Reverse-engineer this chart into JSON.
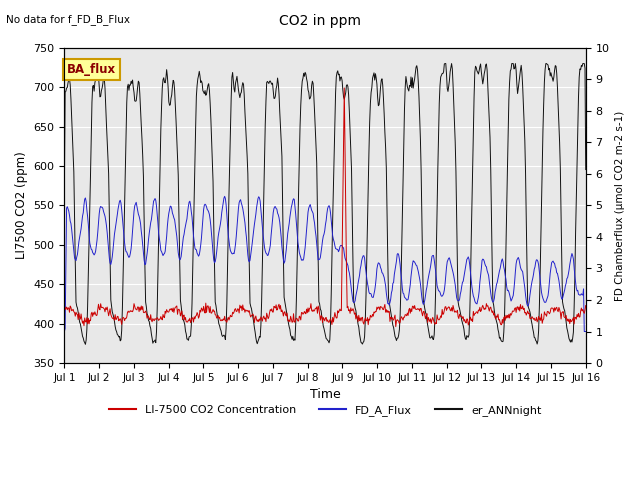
{
  "title": "CO2 in ppm",
  "top_left_text": "No data for f_FD_B_Flux",
  "legend_box_text": "BA_flux",
  "ylabel_left": "LI7500 CO2 (ppm)",
  "ylabel_right": "FD Chamberflux (μmol CO2 m-2 s-1)",
  "xlabel": "Time",
  "ylim_left": [
    350,
    750
  ],
  "ylim_right": [
    0.0,
    10.0
  ],
  "yticks_left": [
    350,
    400,
    450,
    500,
    550,
    600,
    650,
    700,
    750
  ],
  "yticks_right": [
    0.0,
    1.0,
    2.0,
    3.0,
    4.0,
    5.0,
    6.0,
    7.0,
    8.0,
    9.0,
    10.0
  ],
  "color_red": "#cc0000",
  "color_blue": "#2222cc",
  "color_black": "#111111",
  "color_bg": "#e8e8e8",
  "color_legend_box_bg": "#ffff99",
  "color_legend_box_border": "#cc9900",
  "legend_box_text_color": "#8b0000",
  "n_points": 720,
  "figsize": [
    6.4,
    4.8
  ],
  "dpi": 100
}
